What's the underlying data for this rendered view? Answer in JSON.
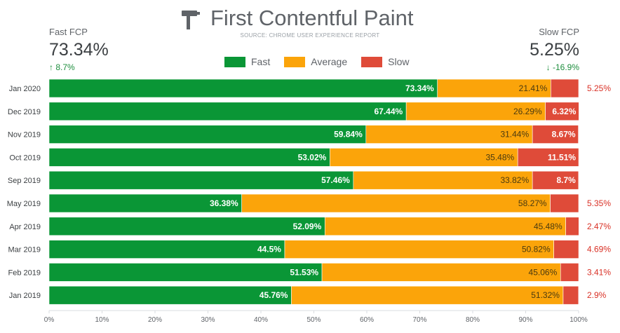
{
  "header": {
    "title": "First Contentful Paint",
    "subtitle": "SOURCE: CHROME USER EXPERIENCE REPORT"
  },
  "kpis": {
    "fast": {
      "label": "Fast FCP",
      "value": "73.34%",
      "change": "↑ 8.7%"
    },
    "slow": {
      "label": "Slow FCP",
      "value": "5.25%",
      "change": "↓ -16.9%"
    }
  },
  "legend": [
    {
      "name": "Fast",
      "color": "#0a9636"
    },
    {
      "name": "Average",
      "color": "#fba40a"
    },
    {
      "name": "Slow",
      "color": "#df4b39"
    }
  ],
  "chart_data": {
    "type": "bar",
    "orientation": "horizontal",
    "stacked": true,
    "title": "First Contentful Paint",
    "categories": [
      "Jan 2020",
      "Dec 2019",
      "Nov 2019",
      "Oct 2019",
      "Sep 2019",
      "May 2019",
      "Apr 2019",
      "Mar 2019",
      "Feb 2019",
      "Jan 2019"
    ],
    "series": [
      {
        "name": "Fast",
        "color": "#0a9636",
        "values": [
          73.34,
          67.44,
          59.84,
          53.02,
          57.46,
          36.38,
          52.09,
          44.5,
          51.53,
          45.76
        ]
      },
      {
        "name": "Average",
        "color": "#fba40a",
        "values": [
          21.41,
          26.29,
          31.44,
          35.48,
          33.82,
          58.27,
          45.48,
          50.82,
          45.06,
          51.32
        ]
      },
      {
        "name": "Slow",
        "color": "#df4b39",
        "values": [
          5.25,
          6.32,
          8.67,
          11.51,
          8.7,
          5.35,
          2.47,
          4.69,
          3.41,
          2.9
        ]
      }
    ],
    "labels": {
      "Fast": [
        "73.34%",
        "67.44%",
        "59.84%",
        "53.02%",
        "57.46%",
        "36.38%",
        "52.09%",
        "44.5%",
        "51.53%",
        "45.76%"
      ],
      "Average": [
        "21.41%",
        "26.29%",
        "31.44%",
        "35.48%",
        "33.82%",
        "58.27%",
        "45.48%",
        "50.82%",
        "45.06%",
        "51.32%"
      ],
      "Slow": [
        "5.25%",
        "6.32%",
        "8.67%",
        "11.51%",
        "8.7%",
        "5.35%",
        "2.47%",
        "4.69%",
        "3.41%",
        "2.9%"
      ]
    },
    "xlim": [
      0,
      100
    ],
    "xticks": [
      "0%",
      "10%",
      "20%",
      "30%",
      "40%",
      "50%",
      "60%",
      "70%",
      "80%",
      "90%",
      "100%"
    ],
    "xlabel": "",
    "ylabel": ""
  }
}
